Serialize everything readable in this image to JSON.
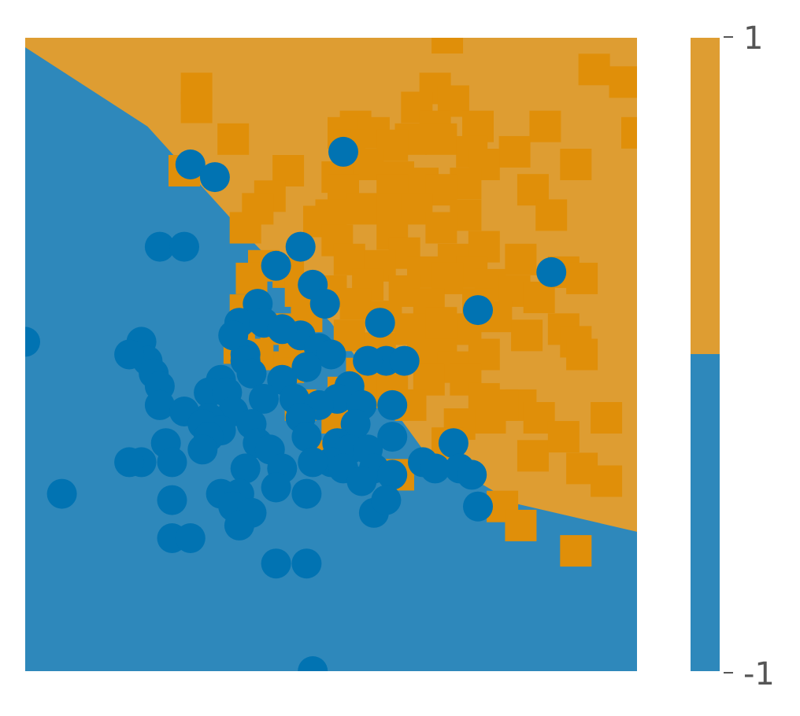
{
  "chart_data": {
    "type": "scatter",
    "title": "",
    "xlabel": "",
    "ylabel": "",
    "xlim": [
      0,
      10
    ],
    "ylim": [
      0,
      10
    ],
    "grid": false,
    "decision_regions": {
      "classes": [
        1,
        -1
      ],
      "boundary": [
        [
          0,
          9.85
        ],
        [
          2,
          8.6
        ],
        [
          3.5,
          7.0
        ],
        [
          5,
          5.5
        ],
        [
          6.5,
          3.5
        ],
        [
          8,
          2.65
        ],
        [
          10,
          2.2
        ]
      ],
      "colors": {
        "1": "#de9d32",
        "-1": "#2e88bb"
      }
    },
    "series": [
      {
        "class": 1,
        "marker": "square",
        "color": "#e08f09",
        "points": [
          [
            6.9,
            10.0
          ],
          [
            9.3,
            9.5
          ],
          [
            9.8,
            9.3
          ],
          [
            2.8,
            9.2
          ],
          [
            6.7,
            9.2
          ],
          [
            7.0,
            9.0
          ],
          [
            2.8,
            8.9
          ],
          [
            6.4,
            8.9
          ],
          [
            5.4,
            8.6
          ],
          [
            6.7,
            8.6
          ],
          [
            7.4,
            8.6
          ],
          [
            8.5,
            8.6
          ],
          [
            5.2,
            8.5
          ],
          [
            5.7,
            8.5
          ],
          [
            6.8,
            8.4
          ],
          [
            10.0,
            8.5
          ],
          [
            3.4,
            8.4
          ],
          [
            5.3,
            8.3
          ],
          [
            6.3,
            8.4
          ],
          [
            7.3,
            8.2
          ],
          [
            8.0,
            8.2
          ],
          [
            6.0,
            8.3
          ],
          [
            5.6,
            8.0
          ],
          [
            7.5,
            8.0
          ],
          [
            9.0,
            8.0
          ],
          [
            4.3,
            7.9
          ],
          [
            5.1,
            7.8
          ],
          [
            6.1,
            7.8
          ],
          [
            6.5,
            7.7
          ],
          [
            2.6,
            7.9
          ],
          [
            6.0,
            7.6
          ],
          [
            7.2,
            7.7
          ],
          [
            4.0,
            7.5
          ],
          [
            5.2,
            7.6
          ],
          [
            6.8,
            7.6
          ],
          [
            8.3,
            7.6
          ],
          [
            3.8,
            7.3
          ],
          [
            5.5,
            7.3
          ],
          [
            6.0,
            7.3
          ],
          [
            7.2,
            7.2
          ],
          [
            5.0,
            7.2
          ],
          [
            6.4,
            7.3
          ],
          [
            3.6,
            7.0
          ],
          [
            4.8,
            7.1
          ],
          [
            6.8,
            7.0
          ],
          [
            8.6,
            7.2
          ],
          [
            5.1,
            6.8
          ],
          [
            6.0,
            6.9
          ],
          [
            7.5,
            6.7
          ],
          [
            8.1,
            6.5
          ],
          [
            5.3,
            6.5
          ],
          [
            6.2,
            6.6
          ],
          [
            7.0,
            6.5
          ],
          [
            3.9,
            6.4
          ],
          [
            5.8,
            6.4
          ],
          [
            6.5,
            6.3
          ],
          [
            7.3,
            6.3
          ],
          [
            8.8,
            6.3
          ],
          [
            4.3,
            6.3
          ],
          [
            5.6,
            6.1
          ],
          [
            6.9,
            6.2
          ],
          [
            7.6,
            6.1
          ],
          [
            9.1,
            6.2
          ],
          [
            5.0,
            6.0
          ],
          [
            6.2,
            6.0
          ],
          [
            8.0,
            6.0
          ],
          [
            3.7,
            6.2
          ],
          [
            4.5,
            6.0
          ],
          [
            5.4,
            5.8
          ],
          [
            6.6,
            5.8
          ],
          [
            7.4,
            5.8
          ],
          [
            8.4,
            5.9
          ],
          [
            3.6,
            5.7
          ],
          [
            4.6,
            5.6
          ],
          [
            5.9,
            5.6
          ],
          [
            7.7,
            5.6
          ],
          [
            4.1,
            5.4
          ],
          [
            5.3,
            5.3
          ],
          [
            6.3,
            5.4
          ],
          [
            7.2,
            5.4
          ],
          [
            8.8,
            5.4
          ],
          [
            5.8,
            5.1
          ],
          [
            6.8,
            5.1
          ],
          [
            9.0,
            5.2
          ],
          [
            8.2,
            5.3
          ],
          [
            6.5,
            5.0
          ],
          [
            7.5,
            5.0
          ],
          [
            9.1,
            5.0
          ],
          [
            7.0,
            4.8
          ],
          [
            6.6,
            4.6
          ],
          [
            5.8,
            4.4
          ],
          [
            4.5,
            4.9
          ],
          [
            7.2,
            4.6
          ],
          [
            4.3,
            4.8
          ],
          [
            5.5,
            4.7
          ],
          [
            7.5,
            4.3
          ],
          [
            8.1,
            4.2
          ],
          [
            6.8,
            5.5
          ],
          [
            5.7,
            4.9
          ],
          [
            3.5,
            5.1
          ],
          [
            3.8,
            5.0
          ],
          [
            4.4,
            5.2
          ],
          [
            6.0,
            4.6
          ],
          [
            5.2,
            4.4
          ],
          [
            6.3,
            4.2
          ],
          [
            7.8,
            4.2
          ],
          [
            4.5,
            4.2
          ],
          [
            5.1,
            4.0
          ],
          [
            7.6,
            4.0
          ],
          [
            8.4,
            4.0
          ],
          [
            9.5,
            4.0
          ],
          [
            7.1,
            3.9
          ],
          [
            8.3,
            3.4
          ],
          [
            9.1,
            3.2
          ],
          [
            6.9,
            3.6
          ],
          [
            4.9,
            3.4
          ],
          [
            8.8,
            3.7
          ],
          [
            6.1,
            3.1
          ],
          [
            9.5,
            3.0
          ],
          [
            7.8,
            2.6
          ],
          [
            8.1,
            2.3
          ],
          [
            9.0,
            1.9
          ]
        ]
      },
      {
        "class": -1,
        "marker": "circle",
        "color": "#0173b2",
        "points": [
          [
            2.7,
            8.0
          ],
          [
            3.1,
            7.8
          ],
          [
            5.2,
            8.2
          ],
          [
            2.2,
            6.7
          ],
          [
            2.6,
            6.7
          ],
          [
            4.5,
            6.7
          ],
          [
            4.1,
            6.4
          ],
          [
            8.6,
            6.3
          ],
          [
            4.7,
            6.1
          ],
          [
            3.8,
            5.8
          ],
          [
            4.9,
            5.8
          ],
          [
            7.4,
            5.7
          ],
          [
            3.5,
            5.5
          ],
          [
            3.9,
            5.5
          ],
          [
            5.8,
            5.5
          ],
          [
            0.0,
            5.2
          ],
          [
            4.5,
            5.3
          ],
          [
            1.9,
            5.2
          ],
          [
            4.2,
            5.4
          ],
          [
            3.6,
            5.0
          ],
          [
            4.8,
            5.1
          ],
          [
            5.0,
            5.0
          ],
          [
            5.9,
            4.9
          ],
          [
            2.0,
            4.9
          ],
          [
            5.6,
            4.9
          ],
          [
            6.2,
            4.9
          ],
          [
            1.7,
            5.0
          ],
          [
            3.4,
            5.3
          ],
          [
            3.6,
            4.9
          ],
          [
            4.6,
            4.8
          ],
          [
            2.1,
            4.7
          ],
          [
            3.7,
            4.7
          ],
          [
            2.2,
            4.5
          ],
          [
            3.2,
            4.6
          ],
          [
            4.2,
            4.6
          ],
          [
            5.3,
            4.5
          ],
          [
            3.0,
            4.4
          ],
          [
            4.4,
            4.3
          ],
          [
            3.3,
            4.4
          ],
          [
            2.2,
            4.2
          ],
          [
            3.9,
            4.3
          ],
          [
            5.1,
            4.3
          ],
          [
            4.8,
            4.2
          ],
          [
            6.0,
            4.2
          ],
          [
            3.4,
            4.1
          ],
          [
            3.0,
            4.0
          ],
          [
            4.5,
            4.0
          ],
          [
            5.5,
            4.2
          ],
          [
            2.6,
            4.1
          ],
          [
            2.9,
            3.9
          ],
          [
            3.7,
            3.9
          ],
          [
            3.2,
            3.8
          ],
          [
            5.4,
            3.9
          ],
          [
            3.0,
            3.7
          ],
          [
            6.0,
            3.7
          ],
          [
            4.6,
            3.7
          ],
          [
            3.8,
            3.6
          ],
          [
            5.1,
            3.6
          ],
          [
            7.0,
            3.6
          ],
          [
            2.3,
            3.6
          ],
          [
            4.0,
            3.5
          ],
          [
            2.9,
            3.5
          ],
          [
            5.3,
            3.5
          ],
          [
            5.6,
            3.5
          ],
          [
            1.9,
            3.3
          ],
          [
            5.0,
            3.3
          ],
          [
            6.5,
            3.3
          ],
          [
            2.4,
            3.3
          ],
          [
            3.6,
            3.2
          ],
          [
            4.7,
            3.3
          ],
          [
            5.7,
            3.2
          ],
          [
            5.2,
            3.2
          ],
          [
            7.1,
            3.2
          ],
          [
            6.7,
            3.2
          ],
          [
            7.3,
            3.1
          ],
          [
            1.7,
            3.3
          ],
          [
            4.2,
            3.2
          ],
          [
            5.5,
            3.0
          ],
          [
            6.0,
            3.1
          ],
          [
            4.1,
            2.9
          ],
          [
            3.2,
            2.8
          ],
          [
            3.5,
            2.8
          ],
          [
            4.6,
            2.8
          ],
          [
            5.7,
            2.5
          ],
          [
            2.4,
            2.7
          ],
          [
            3.4,
            2.6
          ],
          [
            3.7,
            2.5
          ],
          [
            3.5,
            2.3
          ],
          [
            0.6,
            2.8
          ],
          [
            7.4,
            2.6
          ],
          [
            2.4,
            2.1
          ],
          [
            2.7,
            2.1
          ],
          [
            5.9,
            2.7
          ],
          [
            4.1,
            1.7
          ],
          [
            4.6,
            1.7
          ],
          [
            4.7,
            0.0
          ]
        ]
      }
    ],
    "colorbar": {
      "tick_labels": [
        "1",
        "-1"
      ],
      "ticks": [
        1,
        -1
      ]
    }
  }
}
